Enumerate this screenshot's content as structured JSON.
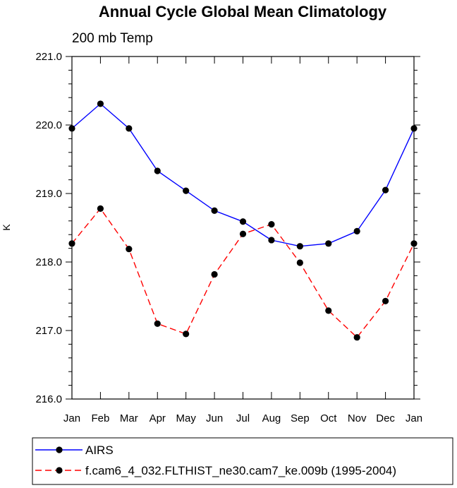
{
  "chart_data": {
    "type": "line",
    "title": "Annual Cycle Global Mean Climatology",
    "subtitle": "200 mb Temp",
    "xlabel": "",
    "ylabel": "K",
    "categories": [
      "Jan",
      "Feb",
      "Mar",
      "Apr",
      "May",
      "Jun",
      "Jul",
      "Aug",
      "Sep",
      "Oct",
      "Nov",
      "Dec",
      "Jan"
    ],
    "ylim": [
      216.0,
      221.0
    ],
    "yticks": [
      "216.0",
      "217.0",
      "218.0",
      "219.0",
      "220.0",
      "221.0"
    ],
    "series": [
      {
        "name": "AIRS",
        "color": "#0000ff",
        "style": "solid",
        "values": [
          219.95,
          220.31,
          219.95,
          219.33,
          219.04,
          218.75,
          218.59,
          218.32,
          218.23,
          218.27,
          218.45,
          219.05,
          219.95
        ]
      },
      {
        "name": "f.cam6_4_032.FLTHIST_ne30.cam7_ke.009b (1995-2004)",
        "color": "#ff0000",
        "style": "dashed",
        "values": [
          218.27,
          218.78,
          218.19,
          217.1,
          216.95,
          217.82,
          218.41,
          218.55,
          217.99,
          217.29,
          216.9,
          217.43,
          218.27
        ]
      }
    ],
    "legend_position": "bottom"
  }
}
